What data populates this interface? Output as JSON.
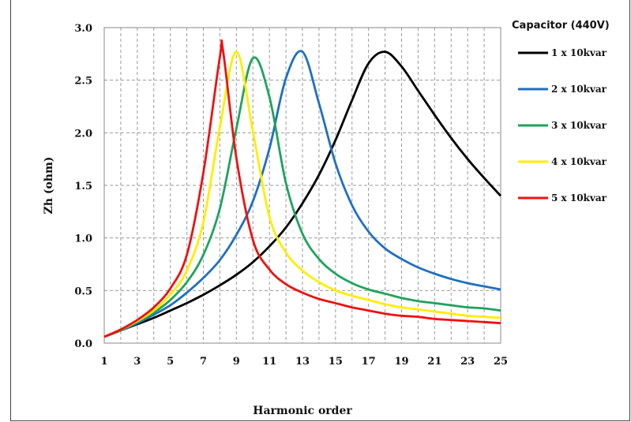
{
  "chart_data": {
    "type": "line",
    "title": "",
    "xlabel": "Harmonic order",
    "ylabel": "Zh (ohm)",
    "xlim": [
      1,
      25
    ],
    "ylim": [
      0,
      3.0
    ],
    "x_ticks": [
      1,
      3,
      5,
      7,
      9,
      11,
      13,
      15,
      17,
      19,
      21,
      23,
      25
    ],
    "y_ticks": [
      0.0,
      0.5,
      1.0,
      1.5,
      2.0,
      2.5,
      3.0
    ],
    "y_tick_labels": [
      "0.0",
      "0.5",
      "1.0",
      "1.5",
      "2.0",
      "2.5",
      "3.0"
    ],
    "grid": "dashed vertical and horizontal",
    "legend_title": "Capacitor (440V)",
    "legend_position": "right",
    "series": [
      {
        "name": "1 x 10kvar",
        "color": "#000000",
        "x": [
          1,
          2,
          3,
          4,
          5,
          6,
          7,
          8,
          9,
          10,
          11,
          12,
          13,
          14,
          15,
          16,
          17,
          18,
          19,
          20,
          21,
          22,
          23,
          24,
          25
        ],
        "y": [
          0.06,
          0.12,
          0.18,
          0.24,
          0.31,
          0.38,
          0.46,
          0.55,
          0.65,
          0.77,
          0.92,
          1.1,
          1.33,
          1.6,
          1.93,
          2.31,
          2.66,
          2.77,
          2.63,
          2.4,
          2.17,
          1.95,
          1.75,
          1.57,
          1.4
        ]
      },
      {
        "name": "2 x 10kvar",
        "color": "#1f6fc1",
        "x": [
          1,
          2,
          3,
          4,
          5,
          6,
          7,
          8,
          9,
          10,
          11,
          12,
          13,
          14,
          15,
          16,
          17,
          18,
          19,
          20,
          21,
          22,
          23,
          24,
          25
        ],
        "y": [
          0.06,
          0.12,
          0.19,
          0.27,
          0.36,
          0.48,
          0.62,
          0.79,
          1.03,
          1.35,
          1.85,
          2.52,
          2.77,
          2.28,
          1.71,
          1.31,
          1.06,
          0.9,
          0.8,
          0.72,
          0.66,
          0.61,
          0.57,
          0.54,
          0.51
        ]
      },
      {
        "name": "3 x 10kvar",
        "color": "#1fa35b",
        "x": [
          1,
          2,
          3,
          4,
          5,
          6,
          7,
          8,
          9,
          10,
          11,
          12,
          13,
          14,
          15,
          16,
          17,
          18,
          19,
          20,
          21,
          22,
          23,
          24,
          25
        ],
        "y": [
          0.06,
          0.12,
          0.2,
          0.29,
          0.41,
          0.58,
          0.84,
          1.28,
          2.04,
          2.71,
          2.34,
          1.52,
          1.04,
          0.8,
          0.66,
          0.57,
          0.51,
          0.47,
          0.43,
          0.4,
          0.38,
          0.36,
          0.34,
          0.33,
          0.31
        ]
      },
      {
        "name": "4 x 10kvar",
        "color": "#ffee00",
        "x": [
          1,
          2,
          3,
          4,
          5,
          6,
          7,
          8,
          9,
          10,
          11,
          12,
          13,
          14,
          15,
          16,
          17,
          18,
          19,
          20,
          21,
          22,
          23,
          24,
          25
        ],
        "y": [
          0.06,
          0.13,
          0.21,
          0.31,
          0.46,
          0.69,
          1.15,
          2.05,
          2.77,
          2.01,
          1.2,
          0.86,
          0.69,
          0.58,
          0.5,
          0.45,
          0.41,
          0.37,
          0.34,
          0.32,
          0.3,
          0.28,
          0.26,
          0.25,
          0.24
        ]
      },
      {
        "name": "5 x 10kvar",
        "color": "#ee1111",
        "x": [
          1,
          2,
          3,
          4,
          5,
          6,
          7,
          8,
          8.2,
          9,
          10,
          11,
          12,
          13,
          14,
          15,
          16,
          17,
          18,
          19,
          20,
          21,
          22,
          23,
          24,
          25
        ],
        "y": [
          0.06,
          0.13,
          0.22,
          0.34,
          0.52,
          0.84,
          1.62,
          2.72,
          2.77,
          1.76,
          0.98,
          0.7,
          0.56,
          0.48,
          0.42,
          0.38,
          0.34,
          0.31,
          0.28,
          0.26,
          0.25,
          0.23,
          0.22,
          0.21,
          0.2,
          0.19
        ]
      }
    ]
  }
}
